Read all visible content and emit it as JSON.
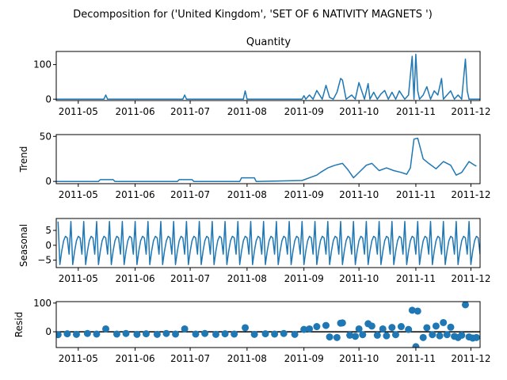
{
  "figure": {
    "title": "Decomposition for ('United Kingdom', 'SET OF 6 NATIVITY MAGNETS ')",
    "line_color": "#1f77b4"
  },
  "chart_data": [
    {
      "type": "line",
      "title": "Quantity",
      "ylabel": "",
      "ylim": [
        -4,
        138
      ],
      "yticks": [
        0,
        100
      ],
      "xlim": [
        "2011-04-19",
        "2011-12-06"
      ],
      "xticks": [
        "2011-05",
        "2011-06",
        "2011-07",
        "2011-08",
        "2011-09",
        "2011-10",
        "2011-11",
        "2011-12"
      ],
      "x": [
        "2011-04-19",
        "2011-05-01",
        "2011-05-15",
        "2011-05-16",
        "2011-05-17",
        "2011-06-01",
        "2011-06-27",
        "2011-06-28",
        "2011-06-29",
        "2011-07-30",
        "2011-07-31",
        "2011-08-01",
        "2011-08-02",
        "2011-08-25",
        "2011-08-31",
        "2011-09-01",
        "2011-09-02",
        "2011-09-04",
        "2011-09-06",
        "2011-09-08",
        "2011-09-11",
        "2011-09-13",
        "2011-09-15",
        "2011-09-17",
        "2011-09-19",
        "2011-09-21",
        "2011-09-22",
        "2011-09-24",
        "2011-09-27",
        "2011-09-29",
        "2011-10-01",
        "2011-10-04",
        "2011-10-06",
        "2011-10-07",
        "2011-10-09",
        "2011-10-11",
        "2011-10-13",
        "2011-10-15",
        "2011-10-17",
        "2011-10-19",
        "2011-10-21",
        "2011-10-23",
        "2011-10-26",
        "2011-10-28",
        "2011-10-30",
        "2011-10-31",
        "2011-11-01",
        "2011-11-02",
        "2011-11-03",
        "2011-11-05",
        "2011-11-07",
        "2011-11-09",
        "2011-11-11",
        "2011-11-13",
        "2011-11-15",
        "2011-11-16",
        "2011-11-18",
        "2011-11-20",
        "2011-11-22",
        "2011-11-24",
        "2011-11-26",
        "2011-11-28",
        "2011-11-29",
        "2011-11-30",
        "2011-12-01",
        "2011-12-03",
        "2011-12-06"
      ],
      "values": [
        0,
        0,
        0,
        12,
        0,
        0,
        0,
        12,
        0,
        0,
        24,
        0,
        0,
        0,
        0,
        10,
        0,
        12,
        0,
        25,
        0,
        40,
        5,
        0,
        20,
        60,
        55,
        0,
        12,
        0,
        48,
        0,
        45,
        0,
        20,
        0,
        15,
        25,
        0,
        20,
        0,
        24,
        0,
        12,
        124,
        0,
        130,
        24,
        0,
        12,
        36,
        0,
        24,
        12,
        60,
        0,
        12,
        24,
        0,
        12,
        0,
        116,
        24,
        0,
        0,
        0,
        0
      ]
    },
    {
      "type": "line",
      "title": "",
      "ylabel": "Trend",
      "ylim": [
        -2.5,
        52
      ],
      "yticks": [
        0,
        50
      ],
      "xlim": [
        "2011-04-19",
        "2011-12-06"
      ],
      "xticks": [
        "2011-05",
        "2011-06",
        "2011-07",
        "2011-08",
        "2011-09",
        "2011-10",
        "2011-11",
        "2011-12"
      ],
      "x": [
        "2011-04-19",
        "2011-05-12",
        "2011-05-13",
        "2011-05-20",
        "2011-05-21",
        "2011-06-24",
        "2011-06-25",
        "2011-07-02",
        "2011-07-03",
        "2011-07-28",
        "2011-07-29",
        "2011-08-05",
        "2011-08-06",
        "2011-08-31",
        "2011-09-04",
        "2011-09-08",
        "2011-09-10",
        "2011-09-14",
        "2011-09-18",
        "2011-09-22",
        "2011-09-25",
        "2011-09-28",
        "2011-10-02",
        "2011-10-05",
        "2011-10-08",
        "2011-10-12",
        "2011-10-16",
        "2011-10-20",
        "2011-10-24",
        "2011-10-27",
        "2011-10-29",
        "2011-10-31",
        "2011-11-02",
        "2011-11-05",
        "2011-11-08",
        "2011-11-12",
        "2011-11-16",
        "2011-11-20",
        "2011-11-23",
        "2011-11-26",
        "2011-11-30",
        "2011-12-03",
        "2011-12-04"
      ],
      "values": [
        0,
        0,
        2,
        2,
        0,
        0,
        2,
        2,
        0,
        0,
        4,
        4,
        0,
        1,
        4,
        7,
        10,
        15,
        18,
        20,
        13,
        4,
        12,
        18,
        20,
        12,
        15,
        12,
        10,
        8,
        15,
        47,
        48,
        25,
        20,
        14,
        22,
        18,
        7,
        10,
        22,
        18,
        17
      ]
    },
    {
      "type": "line",
      "title": "",
      "ylabel": "Seasonal",
      "ylim": [
        -7.5,
        9
      ],
      "yticks": [
        -5,
        0,
        5
      ],
      "xlim": [
        "2011-04-19",
        "2011-12-06"
      ],
      "xticks": [
        "2011-05",
        "2011-06",
        "2011-07",
        "2011-08",
        "2011-09",
        "2011-10",
        "2011-11",
        "2011-12"
      ],
      "period_days": 7,
      "pattern": [
        8,
        -6.5,
        -2,
        1.5,
        3,
        2.5,
        -3
      ],
      "start": "2011-04-20"
    },
    {
      "type": "scatter",
      "title": "",
      "ylabel": "Resid",
      "ylim": [
        -55,
        105
      ],
      "yticks": [
        0,
        100
      ],
      "xlim": [
        "2011-04-19",
        "2011-12-06"
      ],
      "xticks": [
        "2011-05",
        "2011-06",
        "2011-07",
        "2011-08",
        "2011-09",
        "2011-10",
        "2011-11",
        "2011-12"
      ],
      "reference_line": 0,
      "points": [
        [
          "2011-04-20",
          -10
        ],
        [
          "2011-04-25",
          -7
        ],
        [
          "2011-04-30",
          -9
        ],
        [
          "2011-05-06",
          -6
        ],
        [
          "2011-05-11",
          -8
        ],
        [
          "2011-05-16",
          10
        ],
        [
          "2011-05-22",
          -8
        ],
        [
          "2011-05-27",
          -6
        ],
        [
          "2011-06-02",
          -9
        ],
        [
          "2011-06-07",
          -7
        ],
        [
          "2011-06-13",
          -9
        ],
        [
          "2011-06-18",
          -6
        ],
        [
          "2011-06-23",
          -8
        ],
        [
          "2011-06-28",
          10
        ],
        [
          "2011-07-04",
          -8
        ],
        [
          "2011-07-09",
          -6
        ],
        [
          "2011-07-15",
          -9
        ],
        [
          "2011-07-20",
          -7
        ],
        [
          "2011-07-25",
          -8
        ],
        [
          "2011-07-31",
          14
        ],
        [
          "2011-08-05",
          -9
        ],
        [
          "2011-08-11",
          -7
        ],
        [
          "2011-08-16",
          -8
        ],
        [
          "2011-08-21",
          -6
        ],
        [
          "2011-08-27",
          -9
        ],
        [
          "2011-09-01",
          8
        ],
        [
          "2011-09-04",
          10
        ],
        [
          "2011-09-08",
          18
        ],
        [
          "2011-09-13",
          22
        ],
        [
          "2011-09-15",
          -18
        ],
        [
          "2011-09-19",
          -20
        ],
        [
          "2011-09-21",
          30
        ],
        [
          "2011-09-22",
          31
        ],
        [
          "2011-09-26",
          -12
        ],
        [
          "2011-09-29",
          -16
        ],
        [
          "2011-10-01",
          10
        ],
        [
          "2011-10-03",
          -10
        ],
        [
          "2011-10-06",
          28
        ],
        [
          "2011-10-08",
          20
        ],
        [
          "2011-10-11",
          -12
        ],
        [
          "2011-10-14",
          10
        ],
        [
          "2011-10-16",
          -14
        ],
        [
          "2011-10-19",
          15
        ],
        [
          "2011-10-21",
          -10
        ],
        [
          "2011-10-24",
          18
        ],
        [
          "2011-10-28",
          8
        ],
        [
          "2011-10-30",
          75
        ],
        [
          "2011-11-01",
          -52
        ],
        [
          "2011-11-02",
          72
        ],
        [
          "2011-11-05",
          -20
        ],
        [
          "2011-11-07",
          14
        ],
        [
          "2011-11-10",
          -10
        ],
        [
          "2011-11-12",
          20
        ],
        [
          "2011-11-14",
          -14
        ],
        [
          "2011-11-16",
          32
        ],
        [
          "2011-11-18",
          -10
        ],
        [
          "2011-11-20",
          16
        ],
        [
          "2011-11-22",
          -16
        ],
        [
          "2011-11-24",
          -20
        ],
        [
          "2011-11-26",
          -12
        ],
        [
          "2011-11-28",
          94
        ],
        [
          "2011-11-30",
          -18
        ],
        [
          "2011-12-02",
          -22
        ],
        [
          "2011-12-04",
          -20
        ]
      ]
    }
  ]
}
